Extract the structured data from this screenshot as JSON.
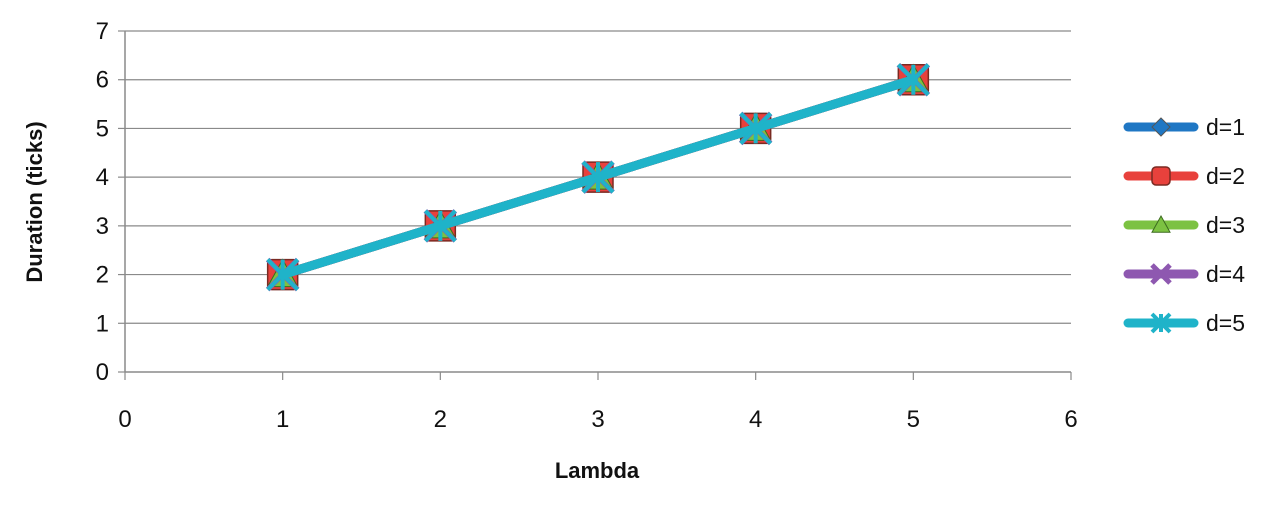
{
  "chart_data": {
    "type": "line",
    "title": "",
    "xlabel": "Lambda",
    "ylabel": "Duration (ticks)",
    "xlim": [
      0,
      6
    ],
    "ylim": [
      0,
      7
    ],
    "xticks": [
      "0",
      "1",
      "2",
      "3",
      "4",
      "5",
      "6"
    ],
    "yticks": [
      "0",
      "1",
      "2",
      "3",
      "4",
      "5",
      "6",
      "7"
    ],
    "grid": "horizontal",
    "legend_position": "right",
    "x": [
      1,
      2,
      3,
      4,
      5
    ],
    "series": [
      {
        "name": "d=1",
        "color": "#1f77c4",
        "marker": "diamond",
        "values": [
          2,
          3,
          4,
          5,
          6
        ]
      },
      {
        "name": "d=2",
        "color": "#e8413c",
        "marker": "square",
        "values": [
          2,
          3,
          4,
          5,
          6
        ]
      },
      {
        "name": "d=3",
        "color": "#7cc242",
        "marker": "triangle",
        "values": [
          2,
          3,
          4,
          5,
          6
        ]
      },
      {
        "name": "d=4",
        "color": "#8e58b0",
        "marker": "x",
        "values": [
          2,
          3,
          4,
          5,
          6
        ]
      },
      {
        "name": "d=5",
        "color": "#1fb3c9",
        "marker": "star",
        "values": [
          2,
          3,
          4,
          5,
          6
        ]
      }
    ]
  }
}
